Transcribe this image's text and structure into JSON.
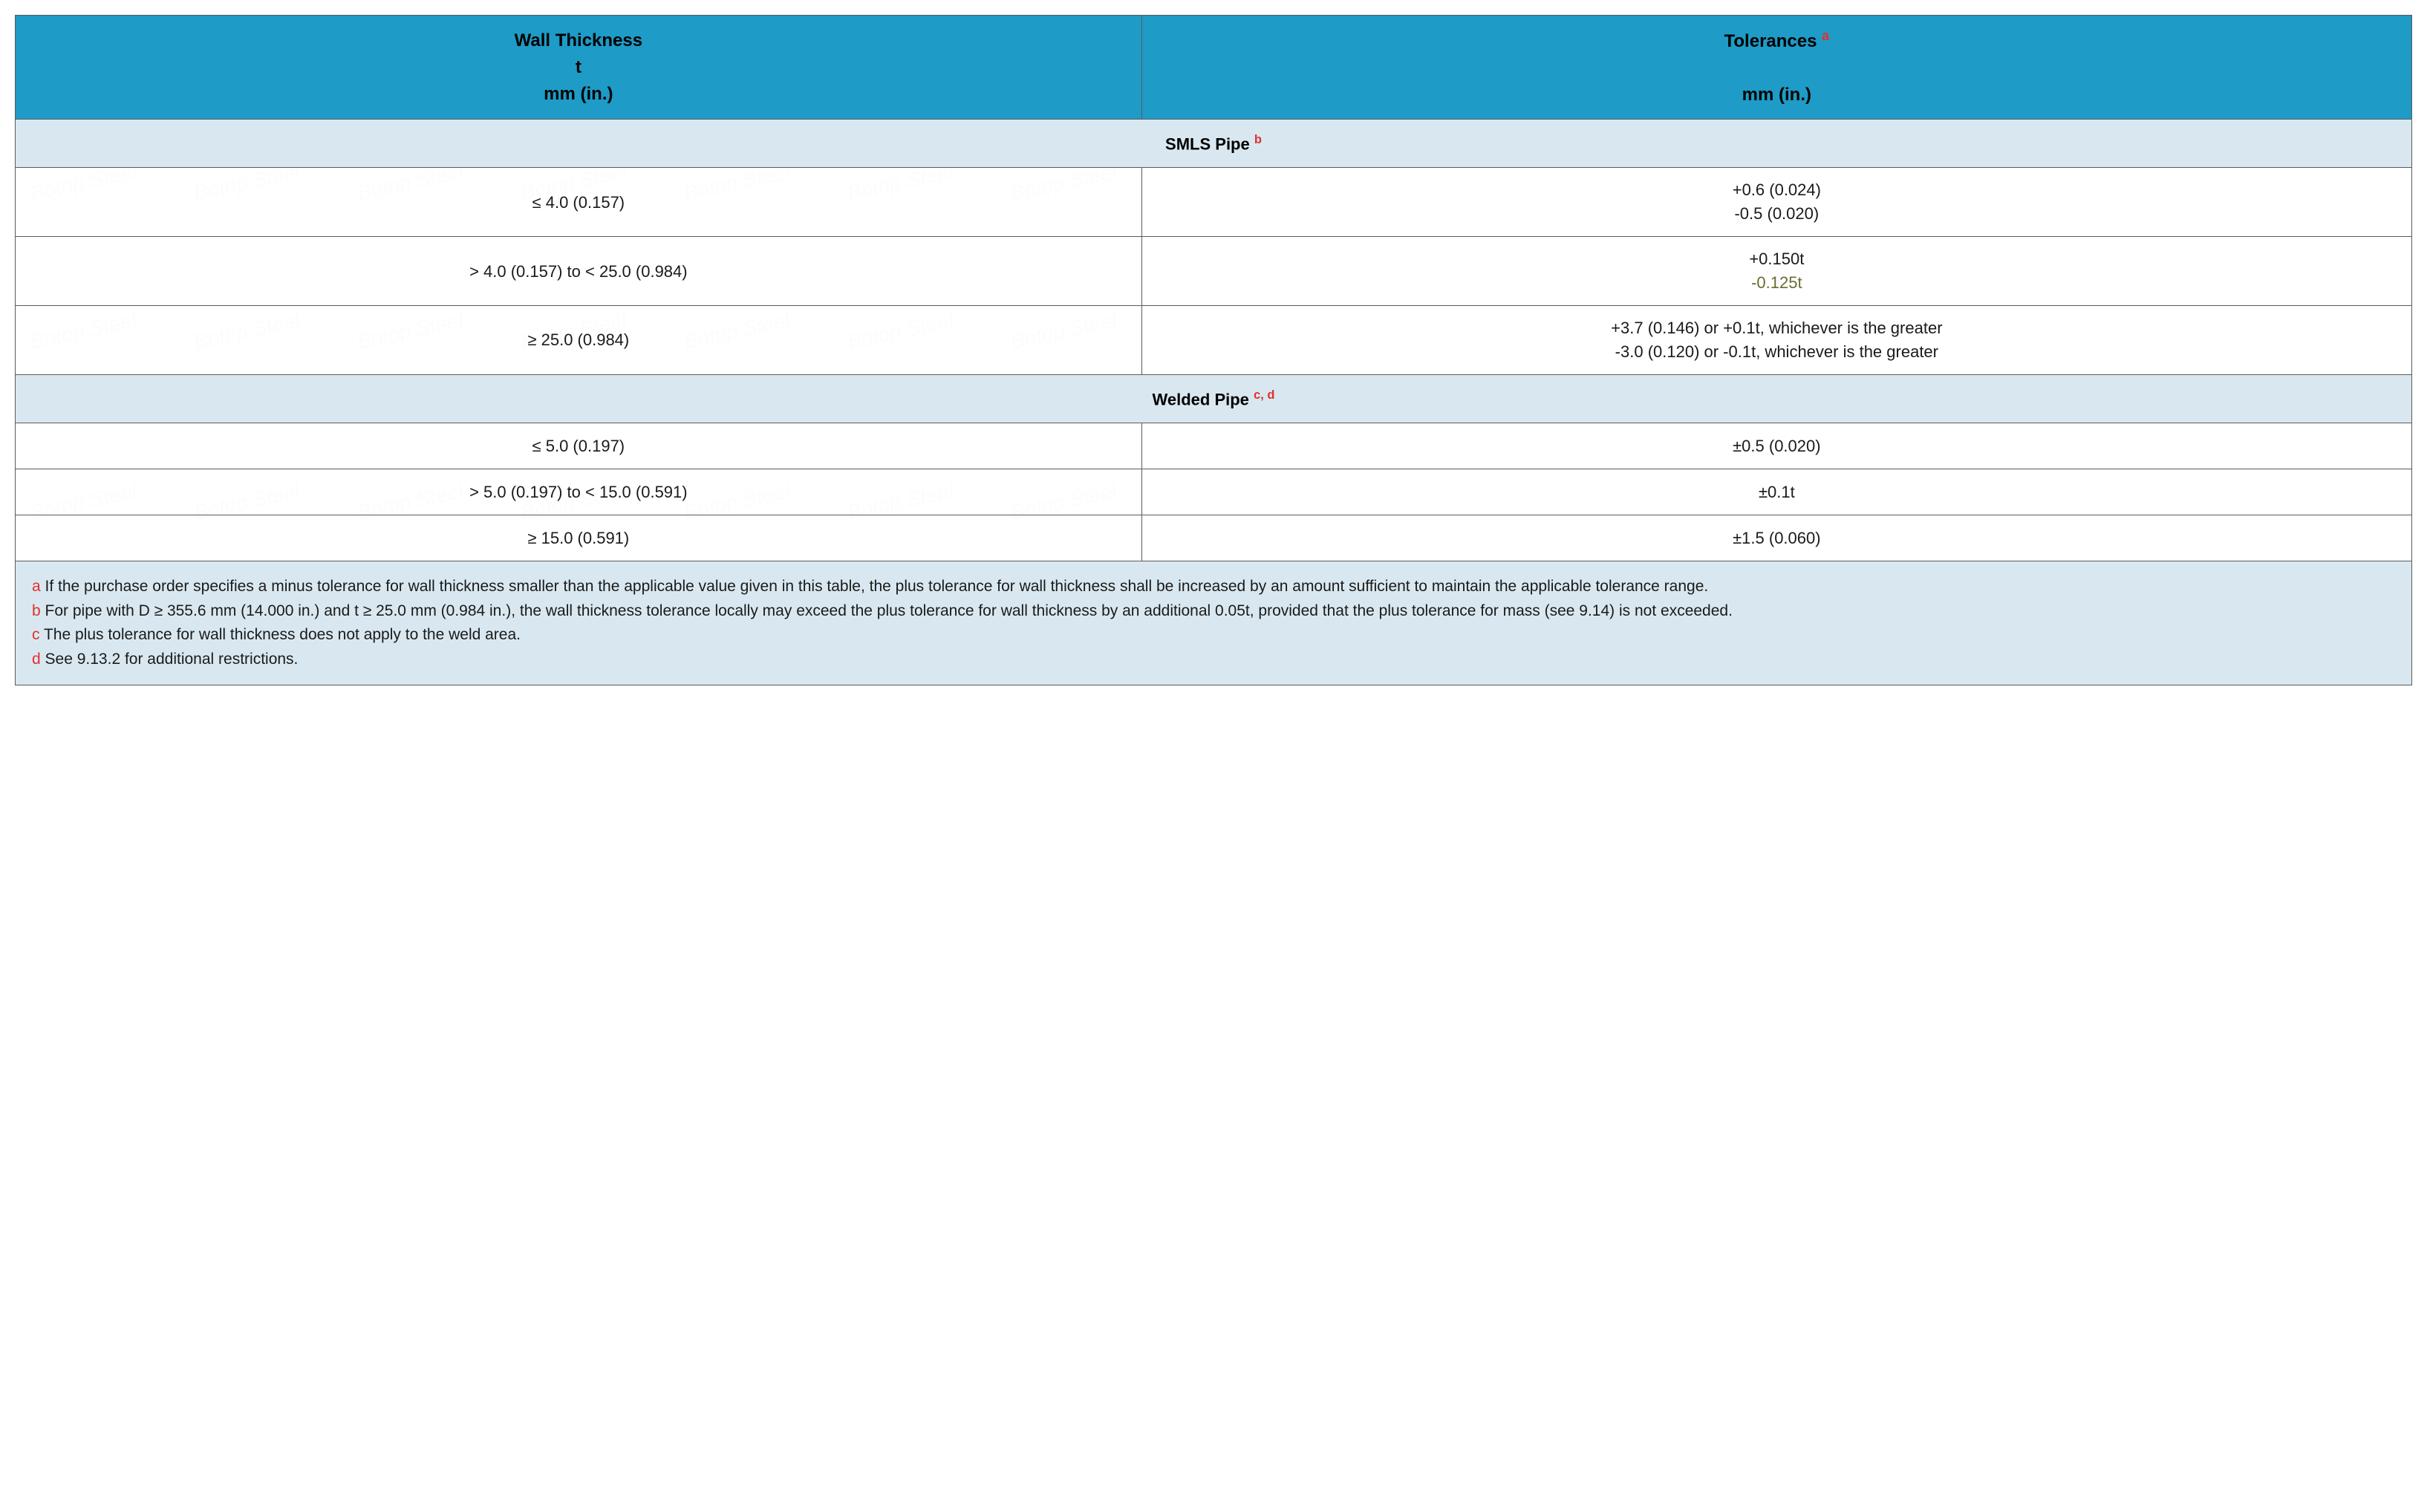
{
  "watermark_text": "Botop Steel",
  "watermark_color": "rgba(120,170,210,0.25)",
  "table": {
    "border_color": "#5a5a5a",
    "header_bg": "#1e9bc6",
    "section_bg": "#d9e8f0",
    "notes_bg": "#d9e8f0",
    "text_color": "#1a1a1a",
    "sup_color": "#e03030",
    "olive_color": "#6b6b2f",
    "columns": [
      {
        "title_l1": "Wall Thickness",
        "title_l2": "t",
        "title_l3": "mm  (in.)"
      },
      {
        "title_l1": "Tolerances",
        "sup": "a",
        "title_l3": "mm  (in.)"
      }
    ],
    "sections": [
      {
        "title": "SMLS Pipe",
        "sup": "b",
        "rows": [
          {
            "thickness": "≤ 4.0 (0.157)",
            "tol_lines": [
              "+0.6 (0.024)",
              "-0.5 (0.020)"
            ]
          },
          {
            "thickness": "> 4.0 (0.157) to < 25.0 (0.984)",
            "tol_lines": [
              "+0.150t"
            ],
            "tol_olive": "-0.125t"
          },
          {
            "thickness": "≥ 25.0  (0.984)",
            "tol_lines": [
              "+3.7 (0.146) or +0.1t, whichever is the greater",
              "-3.0 (0.120) or -0.1t, whichever is the greater"
            ]
          }
        ]
      },
      {
        "title": "Welded Pipe",
        "sup": "c, d",
        "rows": [
          {
            "thickness": "≤ 5.0  (0.197)",
            "tol_lines": [
              "±0.5 (0.020)"
            ]
          },
          {
            "thickness": "> 5.0 (0.197) to < 15.0 (0.591)",
            "tol_lines": [
              "±0.1t"
            ]
          },
          {
            "thickness": "≥ 15.0 (0.591)",
            "tol_lines": [
              "±1.5 (0.060)"
            ]
          }
        ]
      }
    ],
    "notes": [
      {
        "key": "a",
        "text": "If the purchase order specifies a minus tolerance for wall thickness smaller than the applicable value given in this table, the plus tolerance for wall thickness shall be increased by an amount sufficient to maintain the applicable tolerance range."
      },
      {
        "key": "b",
        "text": "For pipe with D ≥ 355.6 mm (14.000 in.) and t ≥ 25.0 mm (0.984 in.), the wall thickness tolerance locally may exceed the plus tolerance for wall thickness by an additional 0.05t, provided that the plus tolerance for mass (see 9.14) is not exceeded."
      },
      {
        "key": "c",
        "text": "The plus tolerance for wall thickness does not apply to the weld area."
      },
      {
        "key": "d",
        "text": "See 9.13.2 for additional restrictions."
      }
    ]
  }
}
